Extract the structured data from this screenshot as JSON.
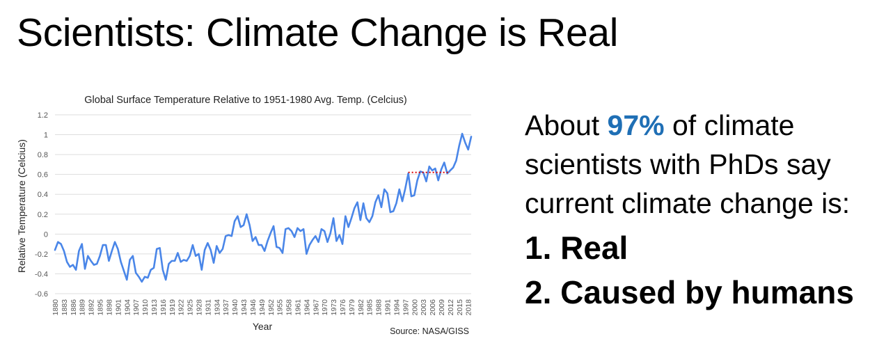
{
  "slide": {
    "title": "Scientists: Climate Change is Real",
    "statement_prefix": "About ",
    "statement_highlight": "97%",
    "statement_suffix": " of climate scientists with PhDs say current climate change is:",
    "list": [
      "1. Real",
      "2. Caused by humans"
    ]
  },
  "colors": {
    "line": "#4a86e8",
    "highlight": "#1f6fb5",
    "dotted_segment": "#e00000",
    "grid": "#dddddd"
  },
  "chart_data": {
    "type": "line",
    "title": "Global Surface Temperature Relative to 1951-1980 Avg. Temp. (Celcius)",
    "xlabel": "Year",
    "ylabel": "Relative Temperature (Celcius)",
    "source": "Source: NASA/GISS",
    "ylim": [
      -0.6,
      1.2
    ],
    "xlim": [
      1880,
      2019
    ],
    "y_ticks": [
      -0.6,
      -0.4,
      -0.2,
      0,
      0.2,
      0.4,
      0.6,
      0.8,
      1,
      1.2
    ],
    "y_tick_labels": [
      "-0.6",
      "-0.4",
      "-0.2",
      "0",
      "0.2",
      "0.4",
      "0.6",
      "0.8",
      "1",
      "1.2"
    ],
    "x_ticks": [
      "1880",
      "1883",
      "1886",
      "1889",
      "1892",
      "1895",
      "1898",
      "1901",
      "1904",
      "1907",
      "1910",
      "1913",
      "1916",
      "1919",
      "1922",
      "1925",
      "1928",
      "1931",
      "1934",
      "1937",
      "1940",
      "1943",
      "1946",
      "1949",
      "1952",
      "1955",
      "1958",
      "1961",
      "1964",
      "1967",
      "1970",
      "1973",
      "1976",
      "1979",
      "1982",
      "1985",
      "1988",
      "1991",
      "1994",
      "1997",
      "2000",
      "2003",
      "2006",
      "2009",
      "2012",
      "2015",
      "2018"
    ],
    "grid": true,
    "legend": "none",
    "series": [
      {
        "name": "Global Surface Temperature",
        "x_start": 1880,
        "values": [
          -0.16,
          -0.08,
          -0.1,
          -0.17,
          -0.28,
          -0.33,
          -0.31,
          -0.36,
          -0.17,
          -0.1,
          -0.35,
          -0.22,
          -0.27,
          -0.31,
          -0.3,
          -0.22,
          -0.11,
          -0.11,
          -0.27,
          -0.17,
          -0.08,
          -0.15,
          -0.28,
          -0.37,
          -0.46,
          -0.26,
          -0.22,
          -0.39,
          -0.43,
          -0.48,
          -0.43,
          -0.44,
          -0.36,
          -0.34,
          -0.15,
          -0.14,
          -0.36,
          -0.46,
          -0.3,
          -0.27,
          -0.27,
          -0.19,
          -0.28,
          -0.26,
          -0.27,
          -0.22,
          -0.11,
          -0.22,
          -0.2,
          -0.36,
          -0.16,
          -0.09,
          -0.16,
          -0.29,
          -0.12,
          -0.19,
          -0.15,
          -0.02,
          -0.01,
          -0.02,
          0.13,
          0.18,
          0.07,
          0.09,
          0.2,
          0.09,
          -0.07,
          -0.03,
          -0.11,
          -0.11,
          -0.17,
          -0.07,
          0.01,
          0.08,
          -0.13,
          -0.14,
          -0.19,
          0.05,
          0.06,
          0.03,
          -0.03,
          0.06,
          0.03,
          0.05,
          -0.2,
          -0.11,
          -0.06,
          -0.02,
          -0.08,
          0.05,
          0.03,
          -0.08,
          0.01,
          0.16,
          -0.07,
          -0.01,
          -0.1,
          0.18,
          0.07,
          0.16,
          0.26,
          0.32,
          0.14,
          0.31,
          0.16,
          0.12,
          0.18,
          0.32,
          0.39,
          0.27,
          0.45,
          0.41,
          0.22,
          0.23,
          0.31,
          0.45,
          0.33,
          0.46,
          0.61,
          0.38,
          0.39,
          0.54,
          0.63,
          0.62,
          0.53,
          0.68,
          0.64,
          0.66,
          0.54,
          0.65,
          0.72,
          0.61,
          0.64,
          0.67,
          0.74,
          0.89,
          1.01,
          0.92,
          0.85,
          0.98
        ]
      }
    ],
    "reference_line": {
      "label": "dotted red segment",
      "from_year": 1998,
      "to_year": 2012,
      "value": 0.62
    }
  }
}
